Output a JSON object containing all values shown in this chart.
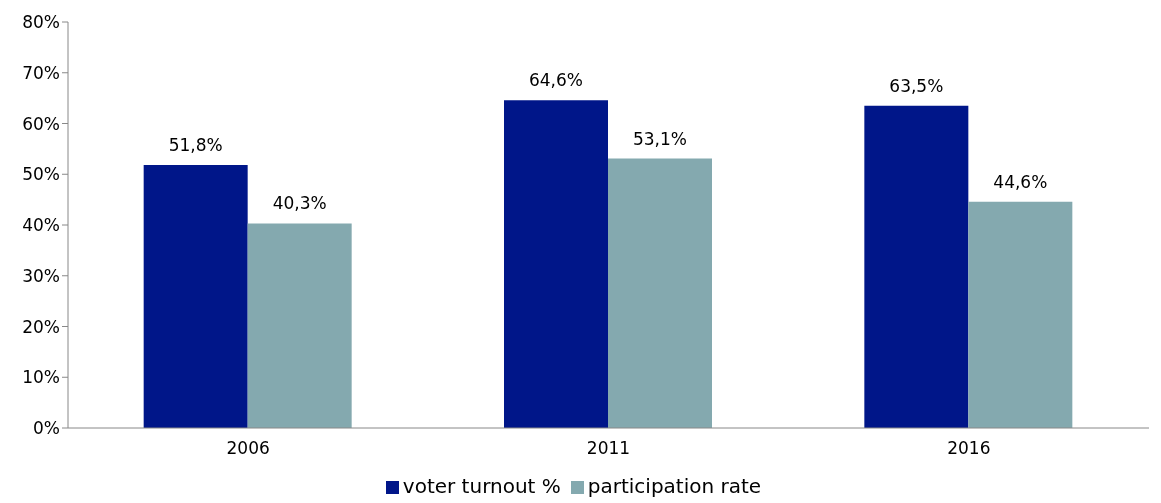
{
  "chart_data": {
    "type": "bar",
    "categories": [
      "2006",
      "2011",
      "2016"
    ],
    "series": [
      {
        "name": "voter turnout %",
        "color": "#001689",
        "values": [
          51.8,
          64.6,
          63.5
        ],
        "value_labels": [
          "51,8%",
          "64,6%",
          "63,5%"
        ]
      },
      {
        "name": "participation rate",
        "color": "#84a9af",
        "values": [
          40.3,
          53.1,
          44.6
        ],
        "value_labels": [
          "40,3%",
          "53,1%",
          "44,6%"
        ]
      }
    ],
    "ylim": [
      0,
      80
    ],
    "yticks": [
      {
        "value": 0,
        "label": "0%"
      },
      {
        "value": 10,
        "label": "10%"
      },
      {
        "value": 20,
        "label": "20%"
      },
      {
        "value": 30,
        "label": "30%"
      },
      {
        "value": 40,
        "label": "40%"
      },
      {
        "value": 50,
        "label": "50%"
      },
      {
        "value": 60,
        "label": "60%"
      },
      {
        "value": 70,
        "label": "70%"
      },
      {
        "value": 80,
        "label": "80%"
      }
    ],
    "grid": false,
    "legend": "bottom"
  }
}
